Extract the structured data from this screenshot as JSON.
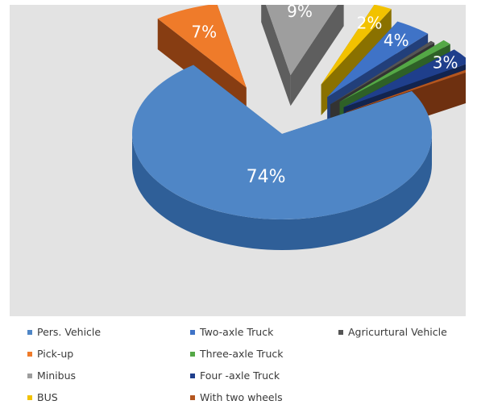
{
  "chart_data": {
    "type": "pie",
    "style": "3d-exploded",
    "title": "",
    "slices": [
      {
        "label": "Pers. Vehicle",
        "value": 74,
        "value_label": "74%",
        "color": "#4f86c6",
        "side": "#2f5f98"
      },
      {
        "label": "Pick-up",
        "value": 7,
        "value_label": "7%",
        "color": "#ef7b2a",
        "side": "#873d12"
      },
      {
        "label": "Minibus",
        "value": 9,
        "value_label": "9%",
        "color": "#9e9e9e",
        "side": "#5e5e5e"
      },
      {
        "label": "BUS",
        "value": 2,
        "value_label": "2%",
        "color": "#f2c200",
        "side": "#8a7100"
      },
      {
        "label": "Two-axle Truck",
        "value": 4,
        "value_label": "4%",
        "color": "#3f73c7",
        "side": "#223f7a"
      },
      {
        "label": "Agricurtural Vehicle",
        "value": 0.5,
        "value_label": "",
        "color": "#555555",
        "side": "#333333"
      },
      {
        "label": "Three-axle Truck",
        "value": 1,
        "value_label": "",
        "color": "#54a846",
        "side": "#2e6027"
      },
      {
        "label": "Four -axle Truck",
        "value": 3,
        "value_label": "3%",
        "color": "#1f3f8c",
        "side": "#12244f"
      },
      {
        "label": "With two wheels",
        "value": 0.5,
        "value_label": "",
        "color": "#b4561f",
        "side": "#6e3010"
      }
    ],
    "legend": {
      "placement": "bottom",
      "columns": [
        [
          "Pers. Vehicle",
          "Pick-up",
          "Minibus",
          "BUS"
        ],
        [
          "Two-axle Truck",
          "Three-axle Truck",
          "Four -axle Truck",
          "With two wheels"
        ],
        [
          "Agricurtural Vehicle"
        ]
      ]
    }
  }
}
